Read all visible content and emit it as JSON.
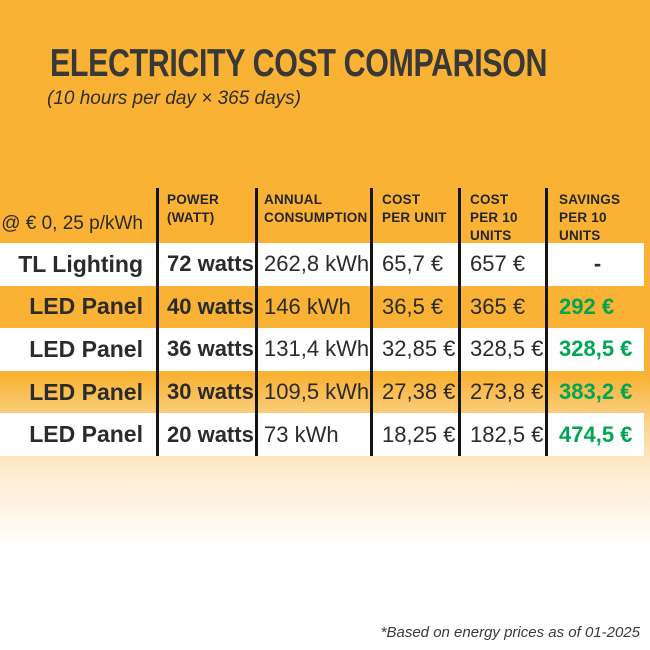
{
  "title": "ELECTRICITY COST COMPARISON",
  "subtitle": "(10 hours per day × 365 days)",
  "footnote": "*Based on energy prices as of 01-2025",
  "table": {
    "rate_label": "@ € 0, 25 p/kWh",
    "headers": {
      "power": "POWER\n(WATT)",
      "annual": "ANNUAL\nCONSUMPTION",
      "cost_unit": "COST\nPER UNIT",
      "cost_10": "COST\nPER 10\nUNITS",
      "savings": "SAVINGS\nPER 10\nUNITS"
    },
    "rows": [
      {
        "label": "TL Lighting",
        "power": "72 watts",
        "annual": "262,8 kWh",
        "cost_unit": "65,7 €",
        "cost_10": "657 €",
        "savings": "-"
      },
      {
        "label": "LED Panel",
        "power": "40 watts",
        "annual": "146 kWh",
        "cost_unit": "36,5 €",
        "cost_10": "365 €",
        "savings": "292 €"
      },
      {
        "label": "LED Panel",
        "power": "36 watts",
        "annual": "131,4 kWh",
        "cost_unit": "32,85 €",
        "cost_10": "328,5 €",
        "savings": "328,5 €"
      },
      {
        "label": "LED Panel",
        "power": "30 watts",
        "annual": "109,5 kWh",
        "cost_unit": "27,38 €",
        "cost_10": "273,8 €",
        "savings": "383,2 €"
      },
      {
        "label": "LED Panel",
        "power": "20 watts",
        "annual": "73 kWh",
        "cost_unit": "18,25 €",
        "cost_10": "182,5 €",
        "savings": "474,5 €"
      }
    ]
  },
  "colors": {
    "amber": "#F9B233",
    "savings_green": "#00A651",
    "dark_text": "#2B2B2B",
    "divider_black": "#141414"
  },
  "chart_data": {
    "type": "table",
    "title": "ELECTRICITY COST COMPARISON",
    "subtitle": "(10 hours per day × 365 days)",
    "price_note": "@ € 0, 25 p/kWh",
    "columns": [
      "",
      "POWER (WATT)",
      "ANNUAL CONSUMPTION",
      "COST PER UNIT",
      "COST PER 10 UNITS",
      "SAVINGS PER 10 UNITS"
    ],
    "rows": [
      [
        "TL Lighting",
        "72 watts",
        "262,8 kWh",
        "65,7 €",
        "657 €",
        "-"
      ],
      [
        "LED Panel",
        "40 watts",
        "146 kWh",
        "36,5 €",
        "365 €",
        "292 €"
      ],
      [
        "LED Panel",
        "36 watts",
        "131,4 kWh",
        "32,85 €",
        "328,5 €",
        "328,5 €"
      ],
      [
        "LED Panel",
        "30 watts",
        "109,5 kWh",
        "27,38 €",
        "273,8 €",
        "383,2 €"
      ],
      [
        "LED Panel",
        "20 watts",
        "73 kWh",
        "18,25 €",
        "182,5 €",
        "474,5 €"
      ]
    ],
    "footnote": "*Based on energy prices as of 01-2025"
  }
}
